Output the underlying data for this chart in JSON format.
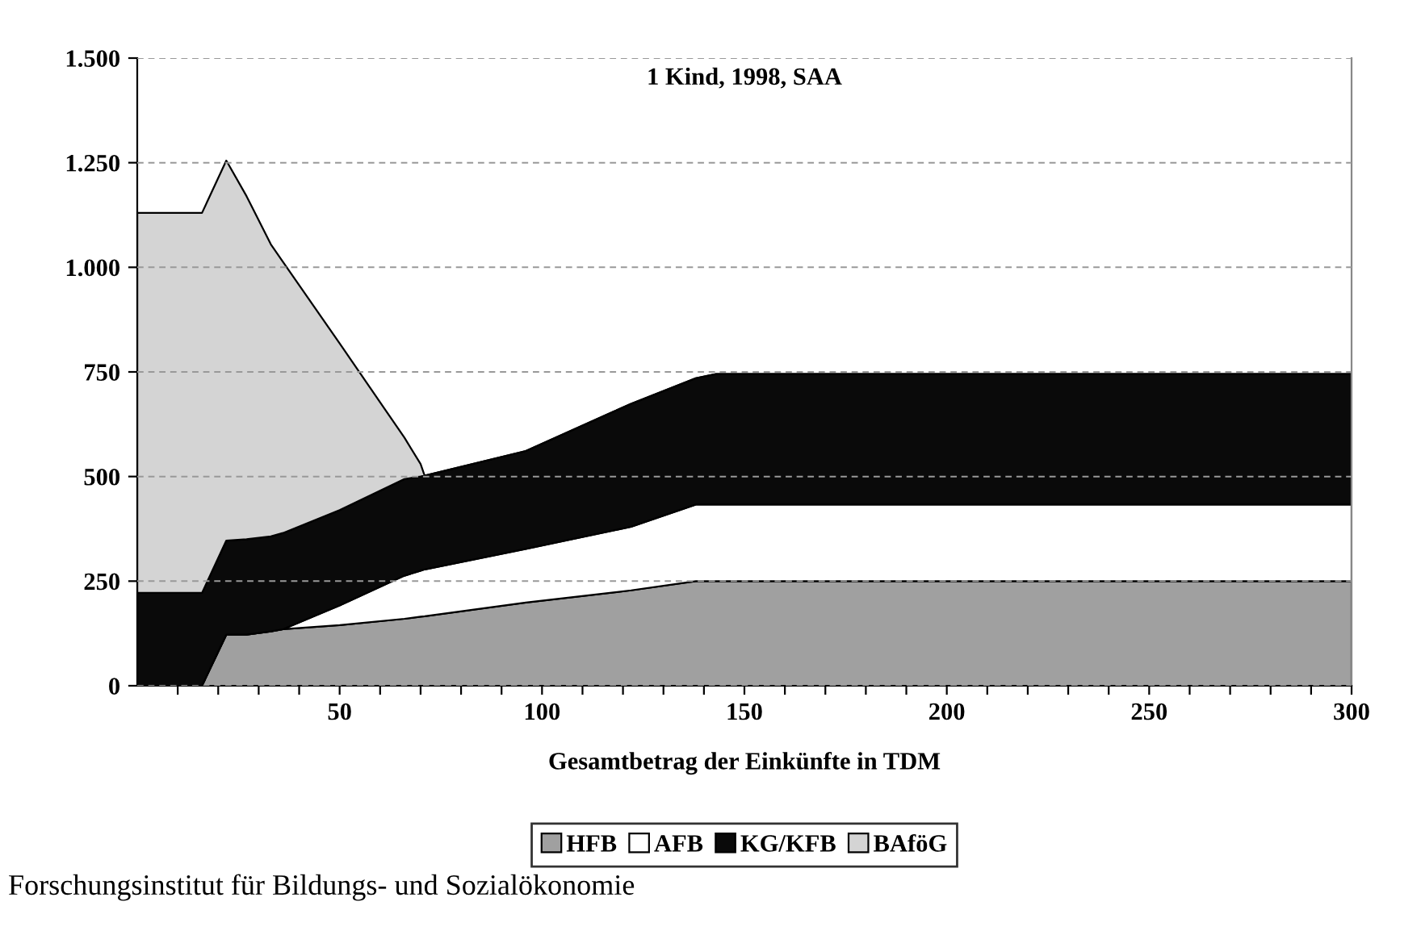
{
  "chart_data": {
    "type": "area",
    "stacked": true,
    "title": "1 Kind, 1998, SAA",
    "xlabel": "Gesamtbetrag der Einkünfte in TDM",
    "x": [
      0,
      16,
      22,
      27,
      33,
      36,
      50,
      66,
      70,
      71,
      96,
      122,
      138,
      143,
      200,
      250,
      300
    ],
    "series": [
      {
        "name": "HFB",
        "color": "#a0a0a0",
        "values": [
          0,
          0,
          122,
          122,
          130,
          135,
          145,
          160,
          165,
          166,
          199,
          228,
          250,
          250,
          250,
          250,
          250
        ]
      },
      {
        "name": "AFB",
        "color": "#ffffff",
        "values": [
          0,
          0,
          0,
          0,
          0,
          0,
          47,
          103,
          110,
          112,
          128,
          152,
          183,
          183,
          183,
          183,
          183
        ]
      },
      {
        "name": "KG/KFB",
        "color": "#0a0a0a",
        "values": [
          222,
          222,
          225,
          228,
          227,
          230,
          228,
          231,
          225,
          224,
          234,
          294,
          302,
          312,
          312,
          312,
          312
        ]
      },
      {
        "name": "BAföG",
        "color": "#d4d4d4",
        "values": [
          908,
          908,
          908,
          820,
          698,
          648,
          398,
          99,
          30,
          0,
          0,
          0,
          0,
          0,
          0,
          0,
          0
        ]
      }
    ],
    "xlim": [
      0,
      300
    ],
    "xticks": [
      {
        "value": 10,
        "label": null
      },
      {
        "value": 20,
        "label": null
      },
      {
        "value": 30,
        "label": null
      },
      {
        "value": 40,
        "label": null
      },
      50,
      {
        "value": 60,
        "label": null
      },
      {
        "value": 70,
        "label": null
      },
      {
        "value": 80,
        "label": null
      },
      {
        "value": 90,
        "label": null
      },
      100,
      {
        "value": 110,
        "label": null
      },
      {
        "value": 120,
        "label": null
      },
      {
        "value": 130,
        "label": null
      },
      {
        "value": 140,
        "label": null
      },
      150,
      {
        "value": 160,
        "label": null
      },
      {
        "value": 170,
        "label": null
      },
      {
        "value": 180,
        "label": null
      },
      {
        "value": 190,
        "label": null
      },
      200,
      {
        "value": 210,
        "label": null
      },
      {
        "value": 220,
        "label": null
      },
      {
        "value": 230,
        "label": null
      },
      {
        "value": 240,
        "label": null
      },
      250,
      {
        "value": 260,
        "label": null
      },
      {
        "value": 270,
        "label": null
      },
      {
        "value": 280,
        "label": null
      },
      {
        "value": 290,
        "label": null
      },
      300
    ],
    "ylim": [
      0,
      1500
    ],
    "yticks": [
      0,
      250,
      500,
      750,
      {
        "value": 1000,
        "label": "1.000"
      },
      {
        "value": 1250,
        "label": "1.250"
      },
      {
        "value": 1500,
        "label": "1.500"
      }
    ],
    "grid": "y",
    "legend": "bottom",
    "annotations": [
      "Forschungsinstitut für Bildungs- und Sozialökonomie"
    ]
  }
}
